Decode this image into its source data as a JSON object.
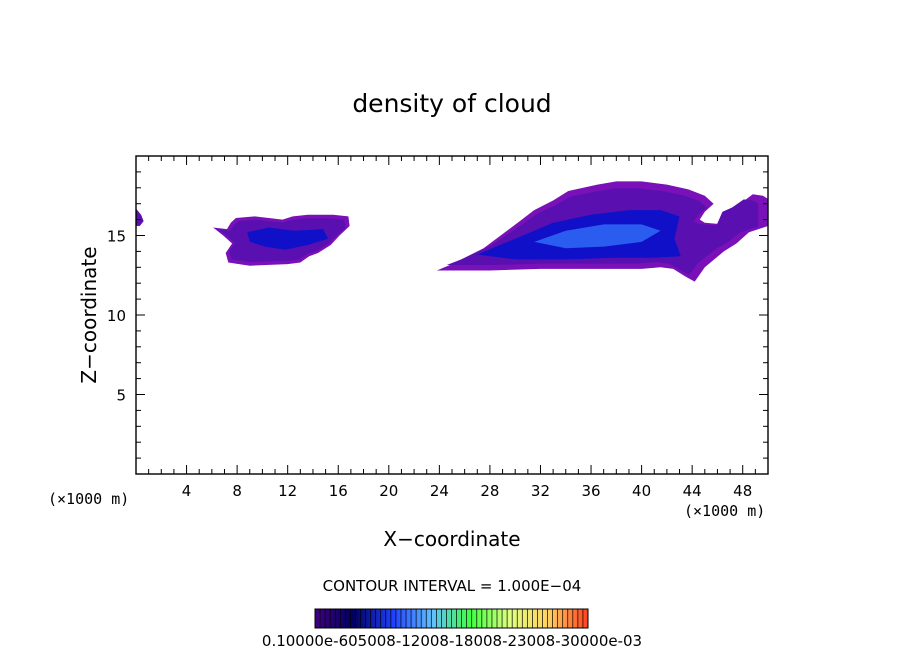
{
  "chart_data": {
    "type": "heatmap",
    "title": "density of cloud",
    "xlabel": "X−coordinate",
    "ylabel": "Z−coordinate",
    "x_unit_left": "(×1000 m)",
    "x_unit_right": "(×1000 m)",
    "xlim": [
      0,
      50
    ],
    "ylim": [
      0,
      20
    ],
    "x_ticks": [
      {
        "value": 4,
        "label": "4"
      },
      {
        "value": 8,
        "label": "8"
      },
      {
        "value": 12,
        "label": "12"
      },
      {
        "value": 16,
        "label": "16"
      },
      {
        "value": 20,
        "label": "20"
      },
      {
        "value": 24,
        "label": "24"
      },
      {
        "value": 28,
        "label": "28"
      },
      {
        "value": 32,
        "label": "32"
      },
      {
        "value": 36,
        "label": "36"
      },
      {
        "value": 40,
        "label": "40"
      },
      {
        "value": 44,
        "label": "44"
      },
      {
        "value": 48,
        "label": "48"
      }
    ],
    "y_ticks": [
      {
        "value": 5,
        "label": "5"
      },
      {
        "value": 10,
        "label": "10"
      },
      {
        "value": 15,
        "label": "15"
      }
    ],
    "contour_interval_text": "CONTOUR INTERVAL = 1.000E−04",
    "colorbar_labels_text": "0.10000e-605008-12008-18008-23008-30000e-03",
    "colorbar_stops": [
      "#400080",
      "#000060",
      "#2040ff",
      "#60c0ff",
      "#40ff40",
      "#e0ff80",
      "#ffd060",
      "#ff4020"
    ],
    "regions": [
      {
        "name": "left-edge-blob",
        "outline": [
          [
            0,
            16.7
          ],
          [
            0.4,
            16.3
          ],
          [
            0.6,
            15.9
          ],
          [
            0.3,
            15.6
          ],
          [
            0,
            15.6
          ]
        ],
        "core": []
      },
      {
        "name": "small-cloud",
        "outline": [
          [
            7.2,
            15.4
          ],
          [
            7.5,
            15.8
          ],
          [
            7.9,
            16.1
          ],
          [
            9.4,
            16.2
          ],
          [
            10.5,
            16.1
          ],
          [
            11.6,
            16.0
          ],
          [
            12.4,
            16.2
          ],
          [
            13.6,
            16.3
          ],
          [
            15.6,
            16.3
          ],
          [
            16.8,
            16.2
          ],
          [
            16.9,
            15.6
          ],
          [
            16.1,
            15.0
          ],
          [
            15.4,
            14.4
          ],
          [
            14.4,
            13.9
          ],
          [
            13.7,
            13.7
          ],
          [
            13.0,
            13.3
          ],
          [
            12.0,
            13.2
          ],
          [
            9.0,
            13.1
          ],
          [
            7.3,
            13.3
          ],
          [
            7.1,
            13.9
          ],
          [
            7.6,
            14.5
          ],
          [
            6.9,
            15.0
          ],
          [
            6.1,
            15.5
          ]
        ],
        "core": [
          [
            8.8,
            15.2
          ],
          [
            10.5,
            15.5
          ],
          [
            12.5,
            15.3
          ],
          [
            14.8,
            15.4
          ],
          [
            15.2,
            14.8
          ],
          [
            13.6,
            14.4
          ],
          [
            11.8,
            14.1
          ],
          [
            10.2,
            14.3
          ],
          [
            9.0,
            14.6
          ]
        ]
      },
      {
        "name": "large-cloud",
        "outline": [
          [
            23.8,
            12.8
          ],
          [
            25.0,
            13.2
          ],
          [
            27.5,
            14.2
          ],
          [
            30.2,
            15.8
          ],
          [
            31.5,
            16.6
          ],
          [
            33.0,
            17.2
          ],
          [
            34.2,
            17.8
          ],
          [
            36.5,
            18.2
          ],
          [
            38.0,
            18.4
          ],
          [
            40.0,
            18.4
          ],
          [
            42.0,
            18.2
          ],
          [
            43.7,
            17.9
          ],
          [
            45.0,
            17.5
          ],
          [
            45.7,
            17.0
          ],
          [
            45.0,
            16.5
          ],
          [
            44.6,
            16.0
          ],
          [
            45.0,
            15.8
          ],
          [
            46.5,
            15.7
          ],
          [
            47.0,
            16.7
          ],
          [
            47.8,
            17.0
          ],
          [
            48.8,
            17.6
          ],
          [
            49.6,
            17.5
          ],
          [
            50,
            17.3
          ],
          [
            50,
            15.6
          ],
          [
            48.5,
            15.2
          ],
          [
            47.5,
            14.5
          ],
          [
            46.5,
            14.0
          ],
          [
            45.0,
            13.0
          ],
          [
            44.2,
            12.1
          ],
          [
            43.5,
            12.4
          ],
          [
            42.5,
            12.9
          ],
          [
            41.5,
            13.0
          ],
          [
            40.0,
            12.9
          ],
          [
            36.0,
            12.9
          ],
          [
            32.0,
            12.9
          ],
          [
            28.0,
            12.8
          ],
          [
            25.0,
            12.8
          ]
        ],
        "core": [
          [
            27.0,
            13.8
          ],
          [
            30.0,
            14.8
          ],
          [
            33.0,
            15.8
          ],
          [
            36.0,
            16.3
          ],
          [
            39.0,
            16.6
          ],
          [
            41.5,
            16.6
          ],
          [
            43.0,
            16.2
          ],
          [
            42.6,
            14.8
          ],
          [
            43.1,
            13.7
          ],
          [
            41.0,
            13.6
          ],
          [
            38.0,
            13.6
          ],
          [
            34.0,
            13.5
          ],
          [
            30.0,
            13.5
          ]
        ],
        "inner": [
          [
            31.5,
            14.6
          ],
          [
            34.0,
            15.3
          ],
          [
            37.0,
            15.7
          ],
          [
            40.0,
            15.7
          ],
          [
            41.5,
            15.3
          ],
          [
            40.0,
            14.6
          ],
          [
            37.0,
            14.3
          ],
          [
            34.0,
            14.2
          ]
        ]
      }
    ]
  }
}
